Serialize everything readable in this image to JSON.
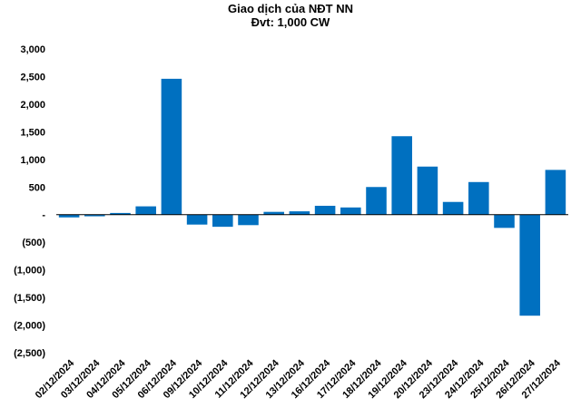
{
  "chart_data": {
    "type": "bar",
    "title": "Giao dịch của NĐT NN",
    "subtitle": "Đvt: 1,000 CW",
    "xlabel": "",
    "ylabel": "",
    "ylim": [
      -2500,
      3000
    ],
    "yticks": [
      3000,
      2500,
      2000,
      1500,
      1000,
      500,
      0,
      -500,
      -1000,
      -1500,
      -2000,
      -2500
    ],
    "ytick_labels": [
      "3,000",
      "2,500",
      "2,000",
      "1,500",
      "1,000",
      "500",
      "-",
      "(500)",
      "(1,000)",
      "(1,500)",
      "(2,000)",
      "(2,500)"
    ],
    "grid": false,
    "bar_color": "#0070C0",
    "categories": [
      "02/12/2024",
      "03/12/2024",
      "04/12/2024",
      "05/12/2024",
      "06/12/2024",
      "09/12/2024",
      "10/12/2024",
      "11/12/2024",
      "12/12/2024",
      "13/12/2024",
      "16/12/2024",
      "17/12/2024",
      "18/12/2024",
      "19/12/2024",
      "20/12/2024",
      "23/12/2024",
      "24/12/2024",
      "25/12/2024",
      "26/12/2024",
      "27/12/2024"
    ],
    "values": [
      -50,
      -30,
      30,
      150,
      2460,
      -180,
      -220,
      -190,
      50,
      60,
      160,
      130,
      500,
      1420,
      870,
      230,
      590,
      -240,
      -1830,
      810
    ]
  }
}
